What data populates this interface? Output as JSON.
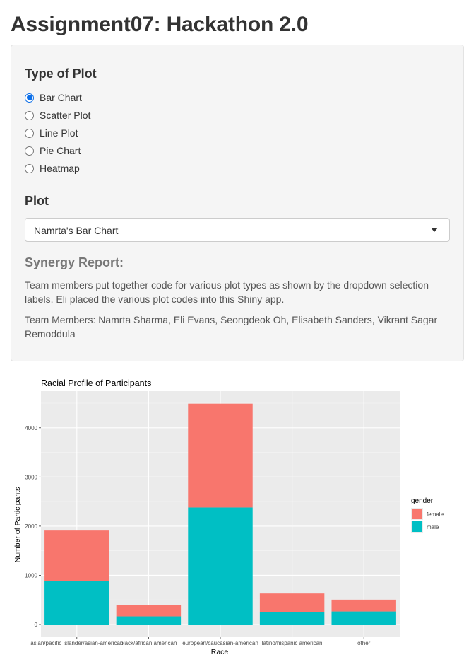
{
  "page": {
    "title": "Assignment07: Hackathon 2.0"
  },
  "controls": {
    "plot_type_label": "Type of Plot",
    "plot_types": [
      {
        "label": "Bar Chart",
        "selected": true
      },
      {
        "label": "Scatter Plot",
        "selected": false
      },
      {
        "label": "Line Plot",
        "selected": false
      },
      {
        "label": "Pie Chart",
        "selected": false
      },
      {
        "label": "Heatmap",
        "selected": false
      }
    ],
    "plot_label": "Plot",
    "plot_select_value": "Namrta's Bar Chart"
  },
  "synergy": {
    "heading": "Synergy Report:",
    "line1": "Team members put together code for various plot types as shown by the dropdown selection",
    "line2": "labels. Eli placed the various plot codes into this Shiny app.",
    "members_line1": "Team Members: Namrta Sharma, Eli Evans, Seongdeok Oh, Elisabeth Sanders, Vikrant Sagar",
    "members_line2": "Remoddula"
  },
  "colors": {
    "female": "#F8766D",
    "male": "#00BFC4",
    "panel_bg": "#EBEBEB",
    "grid": "#FFFFFF"
  },
  "chart_data": {
    "type": "bar",
    "stacked": true,
    "title": "Racial Profile of Participants",
    "xlabel": "Race",
    "ylabel": "Number of Participants",
    "categories": [
      "asian/pacific islander/asian-american",
      "black/african american",
      "european/caucasian-american",
      "latino/hispanic american",
      "other"
    ],
    "series": [
      {
        "name": "male",
        "values": [
          890,
          165,
          2380,
          245,
          265
        ]
      },
      {
        "name": "female",
        "values": [
          1020,
          235,
          2110,
          385,
          240
        ]
      }
    ],
    "ylim": [
      0,
      4700
    ],
    "yticks": [
      "0",
      "1000",
      "2000",
      "3000",
      "4000"
    ],
    "legend_title": "gender",
    "legend_placement": "right",
    "grid": true
  }
}
